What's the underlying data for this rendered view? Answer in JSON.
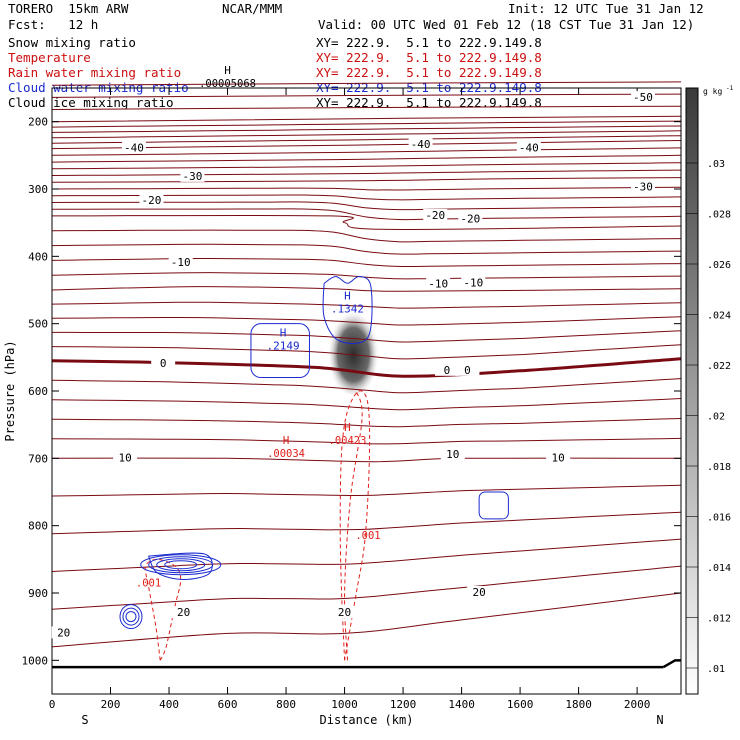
{
  "header": {
    "model": "TORERO  15km ARW",
    "org": "NCAR/MMM",
    "init": "Init: 12 UTC Tue 31 Jan 12",
    "fcst": "Fcst:   12 h",
    "valid": "Valid: 00 UTC Wed 01 Feb 12 (18 CST Tue 31 Jan 12)"
  },
  "colors": {
    "snow": "#000000",
    "temperature": "#7a0a12",
    "rain": "#e0201a",
    "cloud_water": "#1a2bd0",
    "cloud_ice": "#000000"
  },
  "legend": [
    {
      "name": "Snow mixing ratio",
      "xy": "XY= 222.9.  5.1 to 222.9.149.8",
      "color": "#000000"
    },
    {
      "name": "Temperature",
      "xy": "XY= 222.9.  5.1 to 222.9.149.8",
      "color": "#cc1010"
    },
    {
      "name": "Rain water mixing ratio",
      "xy": "XY= 222.9.  5.1 to 222.9.149.8",
      "color": "#cc1010"
    },
    {
      "name": "Cloud water mixing ratio",
      "xy": "XY= 222.9.  5.1 to 222.9.149.8",
      "color": "#1a2bd0"
    },
    {
      "name": "Cloud ice mixing ratio",
      "xy": "XY= 222.9.  5.1 to 222.9.149.8",
      "color": "#000000"
    }
  ],
  "chart_data": {
    "type": "contour",
    "xlabel": "Distance (km)",
    "ylabel": "Pressure (hPa)",
    "xlim": [
      0,
      2150
    ],
    "ylim": [
      1050,
      150
    ],
    "x_ticks": [
      0,
      200,
      400,
      600,
      800,
      1000,
      1200,
      1400,
      1600,
      1800,
      2000
    ],
    "y_ticks": [
      200,
      300,
      400,
      500,
      600,
      700,
      800,
      900,
      1000
    ],
    "endpoint_labels": {
      "left": "S",
      "right": "N"
    },
    "colorbar": {
      "unit": "g kg",
      "unit_exp": "-1",
      "levels": [
        0.01,
        0.012,
        0.014,
        0.016,
        0.018,
        0.02,
        0.022,
        0.024,
        0.026,
        0.028,
        0.03
      ],
      "labels": [
        ".01",
        ".012",
        ".014",
        ".016",
        ".018",
        ".02",
        ".022",
        ".024",
        ".026",
        ".028",
        ".03"
      ]
    },
    "temperature_contours": [
      {
        "level": -50,
        "label": "-50",
        "points": [
          [
            0,
            200
          ],
          [
            1200,
            195
          ],
          [
            1800,
            193
          ],
          [
            2150,
            192
          ]
        ],
        "label_at": [
          [
            2020,
            165
          ]
        ]
      },
      {
        "level": -40,
        "label": "-40",
        "points": [
          [
            0,
            240
          ],
          [
            1000,
            235
          ],
          [
            1500,
            232
          ],
          [
            2150,
            228
          ]
        ],
        "label_at": [
          [
            280,
            240
          ],
          [
            1260,
            235
          ],
          [
            1630,
            240
          ]
        ]
      },
      {
        "level": -30,
        "label": "-30",
        "points": [
          [
            0,
            290
          ],
          [
            1000,
            288
          ],
          [
            1500,
            285
          ],
          [
            2150,
            283
          ]
        ],
        "label_at": [
          [
            480,
            282
          ],
          [
            2020,
            298
          ]
        ]
      },
      {
        "level": -20,
        "label": "-20",
        "points": [
          [
            0,
            340
          ],
          [
            950,
            340
          ],
          [
            1000,
            350
          ],
          [
            1150,
            360
          ],
          [
            2150,
            355
          ]
        ],
        "label_at": [
          [
            340,
            318
          ],
          [
            1310,
            340
          ],
          [
            1430,
            345
          ]
        ]
      },
      {
        "level": -10,
        "label": "-10",
        "points": [
          [
            0,
            450
          ],
          [
            500,
            445
          ],
          [
            950,
            448
          ],
          [
            1200,
            452
          ],
          [
            2150,
            448
          ]
        ],
        "label_at": [
          [
            440,
            410
          ],
          [
            1320,
            442
          ],
          [
            1440,
            440
          ]
        ]
      },
      {
        "level": 0,
        "label": "0",
        "points": [
          [
            0,
            555
          ],
          [
            400,
            558
          ],
          [
            900,
            565
          ],
          [
            1200,
            578
          ],
          [
            1600,
            570
          ],
          [
            2150,
            552
          ]
        ],
        "label_at": [
          [
            380,
            560
          ],
          [
            1350,
            570
          ],
          [
            1420,
            570
          ]
        ]
      },
      {
        "level": 10,
        "label": "10",
        "points": [
          [
            0,
            700
          ],
          [
            600,
            700
          ],
          [
            1100,
            705
          ],
          [
            1400,
            700
          ],
          [
            2150,
            700
          ]
        ],
        "label_at": [
          [
            250,
            700
          ],
          [
            1370,
            695
          ],
          [
            1730,
            700
          ]
        ]
      },
      {
        "level": 20,
        "label": "20",
        "points": [
          [
            0,
            980
          ],
          [
            600,
            960
          ],
          [
            1000,
            960
          ],
          [
            1400,
            940
          ],
          [
            2150,
            900
          ]
        ],
        "label_at": [
          [
            40,
            960
          ],
          [
            450,
            930
          ],
          [
            1000,
            930
          ],
          [
            1460,
            900
          ]
        ]
      }
    ],
    "rain_maxima": [
      {
        "label": "H",
        "value": ".00034",
        "x": 800,
        "p": 685
      },
      {
        "label": "H",
        "value": ".00423",
        "x": 1010,
        "p": 665
      },
      {
        "label": "H",
        "value": ".00005068",
        "x": 600,
        "p": 135
      }
    ],
    "rain_contour_labels": [
      {
        "value": ".001",
        "x": 1080,
        "p": 820
      },
      {
        "value": ".001",
        "x": 330,
        "p": 890
      }
    ],
    "cloud_water_maxima": [
      {
        "label": "H",
        "value": ".2149",
        "x": 790,
        "p": 525
      },
      {
        "label": "H",
        "value": ".1342",
        "x": 1010,
        "p": 470
      }
    ],
    "cloud_ice_gradient": {
      "x": 1030,
      "p_top": 470,
      "p_bottom": 585
    },
    "surface_line": {
      "p": 1010
    }
  }
}
